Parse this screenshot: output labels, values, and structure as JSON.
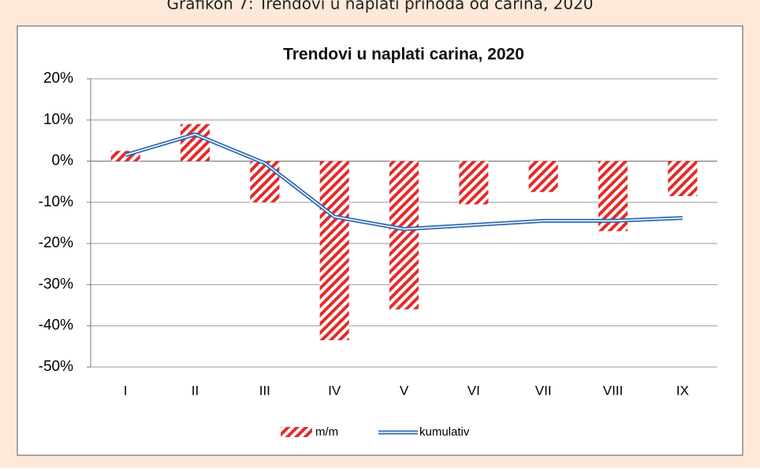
{
  "caption": "Grafikon 7: Trendovi u naplati prihoda od carina, 2020",
  "chart_data": {
    "type": "bar-line",
    "title": "Trendovi u naplati carina, 2020",
    "categories": [
      "I",
      "II",
      "III",
      "IV",
      "V",
      "VI",
      "VII",
      "VIII",
      "IX"
    ],
    "series": [
      {
        "name": "m/m",
        "type": "bar",
        "color": "#e32b2b",
        "values": [
          2.5,
          9,
          -10,
          -43.5,
          -36,
          -10.5,
          -7.5,
          -17,
          -8.5
        ]
      },
      {
        "name": "kumulativ",
        "type": "line",
        "color": "#2e6ab3",
        "values": [
          1.5,
          6.5,
          -0.5,
          -13.5,
          -16.5,
          -15.5,
          -14.5,
          -14.5,
          -13.8
        ]
      }
    ],
    "ylim": [
      -50,
      20
    ],
    "yticks": [
      {
        "value": -50,
        "label": "-50%"
      },
      {
        "value": -40,
        "label": "-40%"
      },
      {
        "value": -30,
        "label": "-30%"
      },
      {
        "value": -20,
        "label": "-20%"
      },
      {
        "value": -10,
        "label": "-10%"
      },
      {
        "value": 0,
        "label": "0%"
      },
      {
        "value": 10,
        "label": "10%"
      },
      {
        "value": 20,
        "label": "20%"
      }
    ],
    "grid": true
  }
}
